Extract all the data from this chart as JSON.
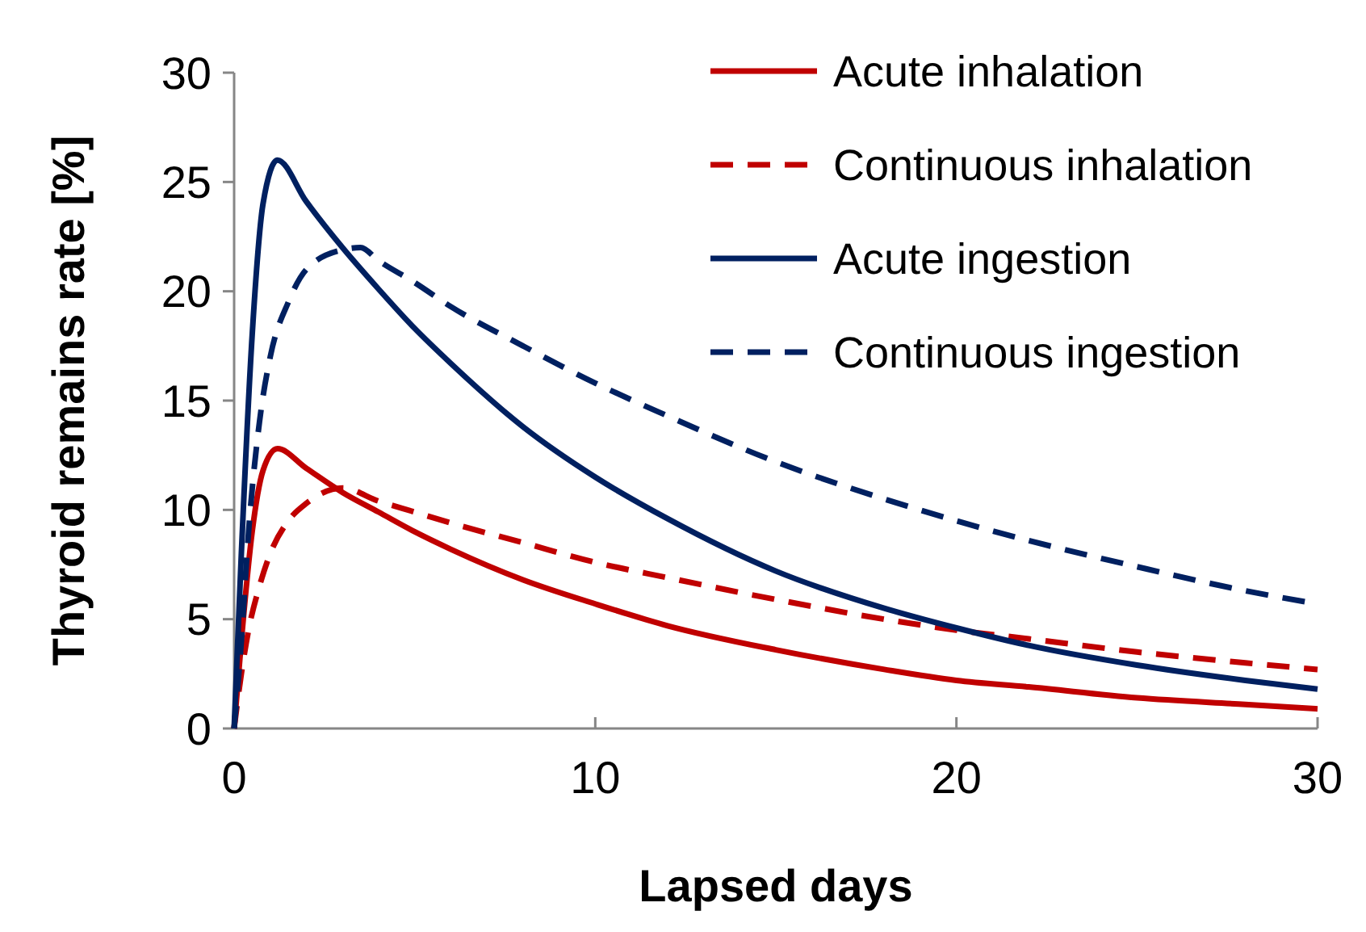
{
  "chart_data": {
    "type": "line",
    "xlabel": "Lapsed days",
    "ylabel": "Thyroid remains rate [%]",
    "xlim": [
      0,
      30
    ],
    "xticks": [
      0,
      10,
      20,
      30
    ],
    "ylim": [
      0,
      30
    ],
    "yticks": [
      0,
      5,
      10,
      15,
      20,
      25,
      30
    ],
    "grid": false,
    "legend": "top right",
    "series": [
      {
        "name": "Acute inhalation",
        "color": "#c00000",
        "line_style": "solid",
        "x": [
          0,
          0.2,
          0.5,
          0.8,
          1.2,
          2,
          3,
          4,
          5,
          6,
          8,
          10,
          12,
          15,
          18,
          20,
          22,
          25,
          28,
          30
        ],
        "values": [
          0,
          4,
          9,
          11.8,
          12.8,
          11.9,
          10.8,
          9.9,
          9.0,
          8.2,
          6.8,
          5.7,
          4.7,
          3.6,
          2.7,
          2.2,
          1.9,
          1.4,
          1.1,
          0.9
        ]
      },
      {
        "name": "Continuous inhalation",
        "color": "#c00000",
        "line_style": "dashed",
        "x": [
          0,
          0.2,
          0.4,
          0.7,
          1,
          1.5,
          2,
          3,
          4,
          5,
          6,
          8,
          10,
          12,
          15,
          18,
          20,
          22,
          25,
          28,
          30
        ],
        "values": [
          0,
          2.5,
          4.5,
          6.5,
          8,
          9.5,
          10.3,
          11,
          10.4,
          9.9,
          9.4,
          8.5,
          7.6,
          6.9,
          5.9,
          5.0,
          4.5,
          4.1,
          3.5,
          3.0,
          2.7
        ]
      },
      {
        "name": "Acute ingestion",
        "color": "#002060",
        "line_style": "solid",
        "x": [
          0,
          0.2,
          0.5,
          0.8,
          1.2,
          2,
          3,
          4,
          5,
          6,
          8,
          10,
          12,
          15,
          18,
          20,
          22,
          25,
          28,
          30
        ],
        "values": [
          0,
          8,
          18,
          24,
          26,
          24.1,
          22.0,
          20.1,
          18.3,
          16.7,
          13.8,
          11.5,
          9.6,
          7.2,
          5.5,
          4.6,
          3.8,
          2.9,
          2.2,
          1.8
        ]
      },
      {
        "name": "Continuous ingestion",
        "color": "#002060",
        "line_style": "dashed",
        "x": [
          0,
          0.2,
          0.4,
          0.7,
          1,
          1.5,
          2,
          3,
          3.5,
          4,
          5,
          6,
          8,
          10,
          12,
          15,
          18,
          20,
          22,
          25,
          28,
          30
        ],
        "values": [
          0,
          4,
          9,
          14,
          17,
          19.5,
          21,
          21.9,
          22,
          21.4,
          20.4,
          19.3,
          17.5,
          15.8,
          14.3,
          12.2,
          10.5,
          9.5,
          8.6,
          7.4,
          6.3,
          5.7
        ]
      }
    ]
  }
}
